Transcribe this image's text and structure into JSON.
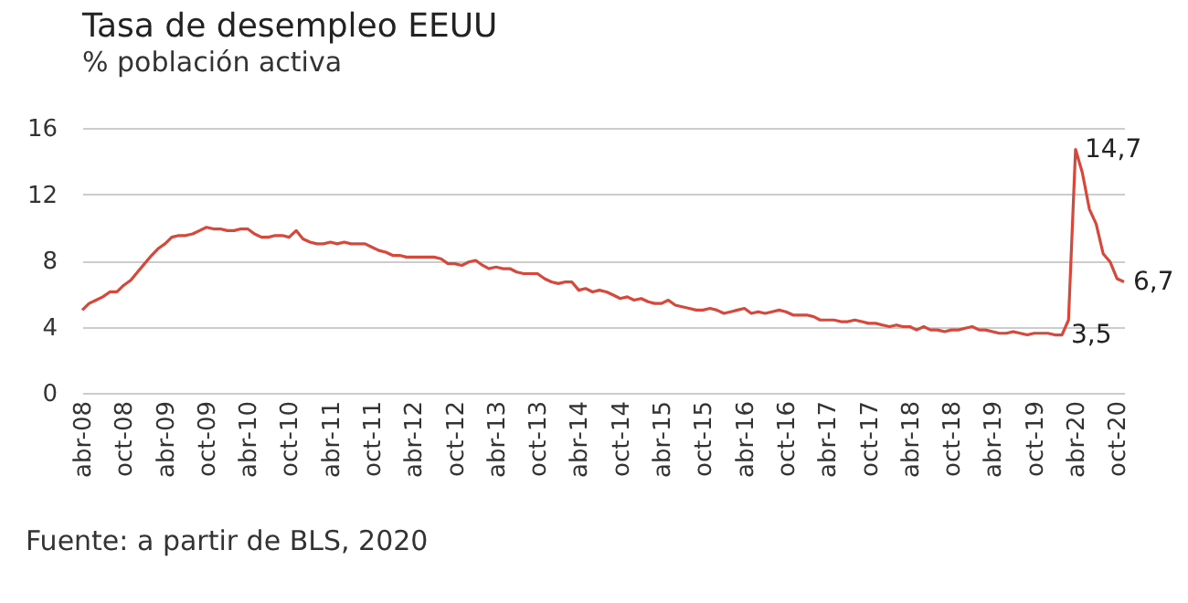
{
  "chart_data": {
    "type": "line",
    "title": "Tasa de desempleo EEUU",
    "subtitle": "% población activa",
    "x": [
      "2008-04",
      "2008-05",
      "2008-06",
      "2008-07",
      "2008-08",
      "2008-09",
      "2008-10",
      "2008-11",
      "2008-12",
      "2009-01",
      "2009-02",
      "2009-03",
      "2009-04",
      "2009-05",
      "2009-06",
      "2009-07",
      "2009-08",
      "2009-09",
      "2009-10",
      "2009-11",
      "2009-12",
      "2010-01",
      "2010-02",
      "2010-03",
      "2010-04",
      "2010-05",
      "2010-06",
      "2010-07",
      "2010-08",
      "2010-09",
      "2010-10",
      "2010-11",
      "2010-12",
      "2011-01",
      "2011-02",
      "2011-03",
      "2011-04",
      "2011-05",
      "2011-06",
      "2011-07",
      "2011-08",
      "2011-09",
      "2011-10",
      "2011-11",
      "2011-12",
      "2012-01",
      "2012-02",
      "2012-03",
      "2012-04",
      "2012-05",
      "2012-06",
      "2012-07",
      "2012-08",
      "2012-09",
      "2012-10",
      "2012-11",
      "2012-12",
      "2013-01",
      "2013-02",
      "2013-03",
      "2013-04",
      "2013-05",
      "2013-06",
      "2013-07",
      "2013-08",
      "2013-09",
      "2013-10",
      "2013-11",
      "2013-12",
      "2014-01",
      "2014-02",
      "2014-03",
      "2014-04",
      "2014-05",
      "2014-06",
      "2014-07",
      "2014-08",
      "2014-09",
      "2014-10",
      "2014-11",
      "2014-12",
      "2015-01",
      "2015-02",
      "2015-03",
      "2015-04",
      "2015-05",
      "2015-06",
      "2015-07",
      "2015-08",
      "2015-09",
      "2015-10",
      "2015-11",
      "2015-12",
      "2016-01",
      "2016-02",
      "2016-03",
      "2016-04",
      "2016-05",
      "2016-06",
      "2016-07",
      "2016-08",
      "2016-09",
      "2016-10",
      "2016-11",
      "2016-12",
      "2017-01",
      "2017-02",
      "2017-03",
      "2017-04",
      "2017-05",
      "2017-06",
      "2017-07",
      "2017-08",
      "2017-09",
      "2017-10",
      "2017-11",
      "2017-12",
      "2018-01",
      "2018-02",
      "2018-03",
      "2018-04",
      "2018-05",
      "2018-06",
      "2018-07",
      "2018-08",
      "2018-09",
      "2018-10",
      "2018-11",
      "2018-12",
      "2019-01",
      "2019-02",
      "2019-03",
      "2019-04",
      "2019-05",
      "2019-06",
      "2019-07",
      "2019-08",
      "2019-09",
      "2019-10",
      "2019-11",
      "2019-12",
      "2020-01",
      "2020-02",
      "2020-03",
      "2020-04",
      "2020-05",
      "2020-06",
      "2020-07",
      "2020-08",
      "2020-09",
      "2020-10",
      "2020-11"
    ],
    "series": [
      {
        "color": "#d9473b",
        "values": [
          5.0,
          5.4,
          5.6,
          5.8,
          6.1,
          6.1,
          6.5,
          6.8,
          7.3,
          7.8,
          8.3,
          8.7,
          9.0,
          9.4,
          9.5,
          9.5,
          9.6,
          9.8,
          10.0,
          9.9,
          9.9,
          9.8,
          9.8,
          9.9,
          9.9,
          9.6,
          9.4,
          9.4,
          9.5,
          9.5,
          9.4,
          9.8,
          9.3,
          9.1,
          9.0,
          9.0,
          9.1,
          9.0,
          9.1,
          9.0,
          9.0,
          9.0,
          8.8,
          8.6,
          8.5,
          8.3,
          8.3,
          8.2,
          8.2,
          8.2,
          8.2,
          8.2,
          8.1,
          7.8,
          7.8,
          7.7,
          7.9,
          8.0,
          7.7,
          7.5,
          7.6,
          7.5,
          7.5,
          7.3,
          7.2,
          7.2,
          7.2,
          6.9,
          6.7,
          6.6,
          6.7,
          6.7,
          6.2,
          6.3,
          6.1,
          6.2,
          6.1,
          5.9,
          5.7,
          5.8,
          5.6,
          5.7,
          5.5,
          5.4,
          5.4,
          5.6,
          5.3,
          5.2,
          5.1,
          5.0,
          5.0,
          5.1,
          5.0,
          4.8,
          4.9,
          5.0,
          5.1,
          4.8,
          4.9,
          4.8,
          4.9,
          5.0,
          4.9,
          4.7,
          4.7,
          4.7,
          4.6,
          4.4,
          4.4,
          4.4,
          4.3,
          4.3,
          4.4,
          4.3,
          4.2,
          4.2,
          4.1,
          4.0,
          4.1,
          4.0,
          4.0,
          3.8,
          4.0,
          3.8,
          3.8,
          3.7,
          3.8,
          3.8,
          3.9,
          4.0,
          3.8,
          3.8,
          3.7,
          3.6,
          3.6,
          3.7,
          3.6,
          3.5,
          3.6,
          3.6,
          3.6,
          3.5,
          3.5,
          4.4,
          14.7,
          13.3,
          11.1,
          10.2,
          8.4,
          7.9,
          6.9,
          6.7
        ]
      }
    ],
    "xlim": [
      "2008-04",
      "2020-11"
    ],
    "xticks": [
      {
        "value": "2008-04",
        "label": "abr-08"
      },
      {
        "value": "2008-10",
        "label": "oct-08"
      },
      {
        "value": "2009-04",
        "label": "abr-09"
      },
      {
        "value": "2009-10",
        "label": "oct-09"
      },
      {
        "value": "2010-04",
        "label": "abr-10"
      },
      {
        "value": "2010-10",
        "label": "oct-10"
      },
      {
        "value": "2011-04",
        "label": "abr-11"
      },
      {
        "value": "2011-10",
        "label": "oct-11"
      },
      {
        "value": "2012-04",
        "label": "abr-12"
      },
      {
        "value": "2012-10",
        "label": "oct-12"
      },
      {
        "value": "2013-04",
        "label": "abr-13"
      },
      {
        "value": "2013-10",
        "label": "oct-13"
      },
      {
        "value": "2014-04",
        "label": "abr-14"
      },
      {
        "value": "2014-10",
        "label": "oct-14"
      },
      {
        "value": "2015-04",
        "label": "abr-15"
      },
      {
        "value": "2015-10",
        "label": "oct-15"
      },
      {
        "value": "2016-04",
        "label": "abr-16"
      },
      {
        "value": "2016-10",
        "label": "oct-16"
      },
      {
        "value": "2017-04",
        "label": "abr-17"
      },
      {
        "value": "2017-10",
        "label": "oct-17"
      },
      {
        "value": "2018-04",
        "label": "abr-18"
      },
      {
        "value": "2018-10",
        "label": "oct-18"
      },
      {
        "value": "2019-04",
        "label": "abr-19"
      },
      {
        "value": "2019-10",
        "label": "oct-19"
      },
      {
        "value": "2020-04",
        "label": "abr-20"
      },
      {
        "value": "2020-10",
        "label": "oct-20"
      }
    ],
    "ylim": [
      0,
      16
    ],
    "yticks": [
      0,
      4,
      8,
      12,
      16
    ],
    "grid": "y",
    "legend": false,
    "marker": "none",
    "line_style": "solid",
    "annotations": [
      {
        "text": "14,7",
        "x": "2020-04",
        "y": 14.7
      },
      {
        "text": "3,5",
        "x": "2020-02",
        "y": 3.5
      },
      {
        "text": "6,7",
        "x": "2020-11",
        "y": 6.7
      },
      "Fuente: a partir de BLS, 2020"
    ]
  }
}
